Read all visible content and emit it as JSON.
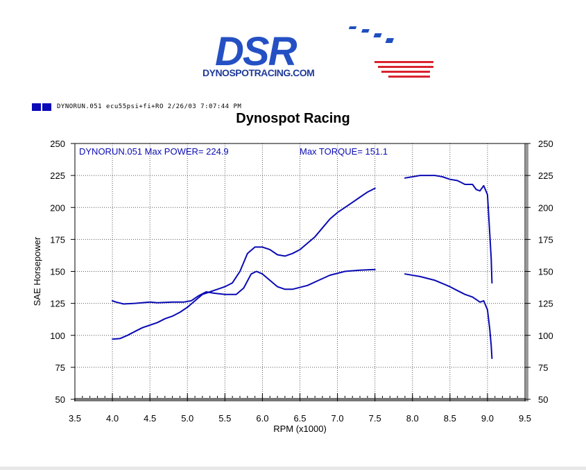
{
  "logo": {
    "text": "DSR",
    "url_text": "DYNOSPOTRACING.COM"
  },
  "run_info": "DYNORUN.051  ecu55psi+fi+RO  2/26/03 7:07:44 PM",
  "chart_data": {
    "type": "line",
    "title": "Dynospot Racing",
    "xlabel": "RPM (x1000)",
    "ylabel": "SAE Horsepower",
    "xlim": [
      3.5,
      9.5
    ],
    "ylim": [
      50,
      250
    ],
    "xticks": [
      "3.5",
      "4.0",
      "4.5",
      "5.0",
      "5.5",
      "6.0",
      "6.5",
      "7.0",
      "7.5",
      "8.0",
      "8.5",
      "9.0",
      "9.5"
    ],
    "yticks": [
      "50",
      "75",
      "100",
      "125",
      "150",
      "175",
      "200",
      "225",
      "250"
    ],
    "annotation_left": "DYNORUN.051  Max POWER= 224.9",
    "annotation_right": "Max TORQUE= 151.1",
    "line_color": "#0a0ab4",
    "series": [
      {
        "segments": [
          [
            [
              4.0,
              97
            ],
            [
              4.1,
              97.5
            ],
            [
              4.2,
              100
            ],
            [
              4.3,
              103
            ],
            [
              4.4,
              106
            ],
            [
              4.5,
              108
            ],
            [
              4.6,
              110
            ],
            [
              4.7,
              113
            ],
            [
              4.8,
              115
            ],
            [
              4.9,
              118
            ],
            [
              5.0,
              122
            ],
            [
              5.1,
              127
            ],
            [
              5.2,
              132
            ],
            [
              5.3,
              134
            ],
            [
              5.4,
              136
            ],
            [
              5.5,
              138
            ],
            [
              5.6,
              141
            ],
            [
              5.7,
              150
            ],
            [
              5.8,
              164
            ],
            [
              5.9,
              169
            ],
            [
              6.0,
              169
            ],
            [
              6.1,
              167
            ],
            [
              6.2,
              163
            ],
            [
              6.3,
              162
            ],
            [
              6.4,
              164
            ],
            [
              6.5,
              167
            ],
            [
              6.6,
              172
            ],
            [
              6.7,
              177
            ],
            [
              6.8,
              184
            ],
            [
              6.9,
              191
            ],
            [
              7.0,
              196
            ],
            [
              7.1,
              200
            ],
            [
              7.2,
              204
            ],
            [
              7.3,
              208
            ],
            [
              7.4,
              212
            ],
            [
              7.5,
              215
            ]
          ],
          [
            [
              7.9,
              223
            ],
            [
              8.0,
              224
            ],
            [
              8.1,
              225
            ],
            [
              8.2,
              225
            ],
            [
              8.3,
              225
            ],
            [
              8.4,
              224
            ],
            [
              8.5,
              222
            ],
            [
              8.6,
              221
            ],
            [
              8.7,
              218
            ],
            [
              8.8,
              218
            ],
            [
              8.85,
              214
            ],
            [
              8.9,
              213
            ],
            [
              8.95,
              217
            ],
            [
              9.0,
              210
            ],
            [
              9.02,
              190
            ],
            [
              9.05,
              160
            ],
            [
              9.06,
              141
            ]
          ]
        ]
      },
      {
        "segments": [
          [
            [
              4.0,
              127
            ],
            [
              4.05,
              126
            ],
            [
              4.15,
              124.5
            ],
            [
              4.3,
              125
            ],
            [
              4.5,
              126
            ],
            [
              4.6,
              125.5
            ],
            [
              4.8,
              126
            ],
            [
              4.95,
              126
            ],
            [
              5.05,
              127
            ],
            [
              5.15,
              131
            ],
            [
              5.25,
              134
            ],
            [
              5.35,
              133
            ],
            [
              5.5,
              132
            ],
            [
              5.65,
              132
            ],
            [
              5.75,
              137
            ],
            [
              5.85,
              148
            ],
            [
              5.92,
              150
            ],
            [
              6.0,
              148
            ],
            [
              6.1,
              143
            ],
            [
              6.2,
              138
            ],
            [
              6.3,
              136
            ],
            [
              6.4,
              136
            ],
            [
              6.6,
              139
            ],
            [
              6.75,
              143
            ],
            [
              6.9,
              147
            ],
            [
              7.1,
              150
            ],
            [
              7.3,
              151
            ],
            [
              7.5,
              151.5
            ]
          ],
          [
            [
              7.9,
              148
            ],
            [
              8.1,
              146
            ],
            [
              8.3,
              143
            ],
            [
              8.5,
              138
            ],
            [
              8.6,
              135
            ],
            [
              8.7,
              132
            ],
            [
              8.8,
              130
            ],
            [
              8.85,
              128
            ],
            [
              8.9,
              126
            ],
            [
              8.95,
              127
            ],
            [
              9.0,
              120
            ],
            [
              9.03,
              105
            ],
            [
              9.05,
              92
            ],
            [
              9.06,
              82
            ]
          ]
        ]
      }
    ]
  }
}
